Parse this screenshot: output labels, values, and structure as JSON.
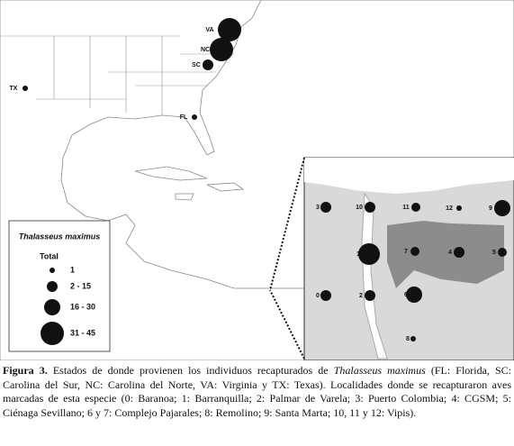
{
  "map": {
    "states": [
      {
        "label": "VA"
      },
      {
        "label": "NC"
      },
      {
        "label": "SC"
      },
      {
        "label": "TX"
      },
      {
        "label": "FL"
      }
    ],
    "localities": [
      {
        "label": "3"
      },
      {
        "label": "10"
      },
      {
        "label": "11"
      },
      {
        "label": "12"
      },
      {
        "label": "9"
      },
      {
        "label": "1"
      },
      {
        "label": "7"
      },
      {
        "label": "4"
      },
      {
        "label": "5"
      },
      {
        "label": "0"
      },
      {
        "label": "2"
      },
      {
        "label": "6"
      },
      {
        "label": "8"
      }
    ],
    "legend": {
      "title": "Thalasseus maximus",
      "subtitle": "Total",
      "classes": [
        "1",
        "2 - 15",
        "16 - 30",
        "31 - 45"
      ]
    }
  },
  "caption": {
    "label": "Figura 3.",
    "text_before": "Estados de donde provienen los individuos recapturados de",
    "species": "Thalasseus maximus",
    "text_after": "(FL: Florida, SC: Carolina del Sur, NC: Carolina del Norte, VA: Virginia y TX: Texas). Localidades donde se recapturaron aves marcadas de esta especie (0: Baranoa; 1: Barranquilla; 2: Palmar de Varela; 3: Puerto Colombia; 4: CGSM; 5: Ciénaga Sevillano; 6 y 7: Complejo Pajarales; 8: Remolino; 9: Santa Marta; 10, 11 y 12: Vipis)."
  }
}
